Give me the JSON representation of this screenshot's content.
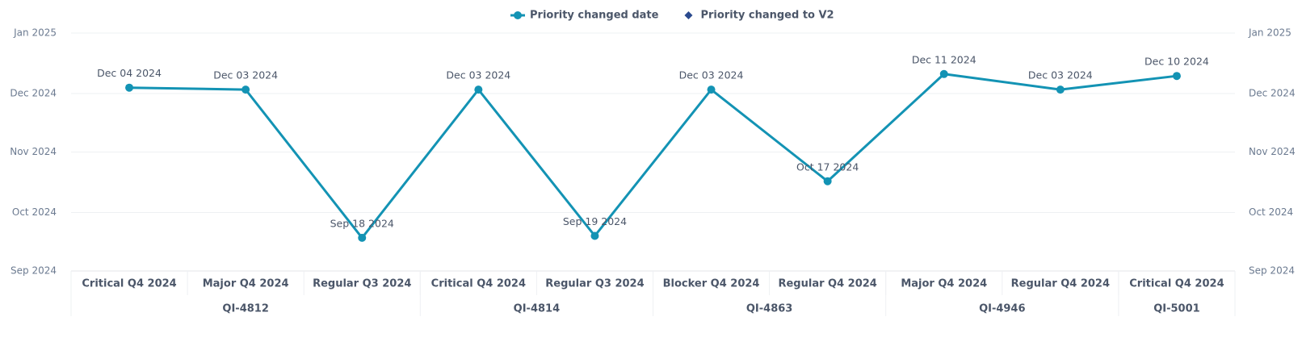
{
  "chart_data": {
    "type": "line",
    "categories": [
      "Critical Q4 2024",
      "Major Q4 2024",
      "Regular Q3 2024",
      "Critical Q4 2024",
      "Regular Q3 2024",
      "Blocker Q4 2024",
      "Regular Q4 2024",
      "Major Q4 2024",
      "Regular Q4 2024",
      "Critical Q4 2024"
    ],
    "groups": [
      {
        "name": "QI-4812",
        "count": 3
      },
      {
        "name": "QI-4814",
        "count": 2
      },
      {
        "name": "QI-4863",
        "count": 2
      },
      {
        "name": "QI-4946",
        "count": 2
      },
      {
        "name": "QI-5001",
        "count": 1
      }
    ],
    "series": [
      {
        "name": "Priority changed date",
        "color": "#1393b4",
        "marker": "circle",
        "values": [
          "2024-12-04",
          "2024-12-03",
          "2024-09-18",
          "2024-12-03",
          "2024-09-19",
          "2024-12-03",
          "2024-10-17",
          "2024-12-11",
          "2024-12-03",
          "2024-12-10"
        ],
        "value_labels": [
          "Dec 04 2024",
          "Dec 03 2024",
          "Sep 18 2024",
          "Dec 03 2024",
          "Sep 19 2024",
          "Dec 03 2024",
          "Oct 17 2024",
          "Dec 11 2024",
          "Dec 03 2024",
          "Dec 10 2024"
        ]
      },
      {
        "name": "Priority changed to V2",
        "color": "#2b4a8e",
        "marker": "diamond",
        "values": [
          null,
          null,
          null,
          null,
          null,
          null,
          null,
          null,
          null,
          null
        ]
      }
    ],
    "ylim": [
      "2024-09-01",
      "2025-01-01"
    ],
    "yticks": [
      {
        "value": "2024-09-01",
        "label": "Sep 2024"
      },
      {
        "value": "2024-10-01",
        "label": "Oct 2024"
      },
      {
        "value": "2024-11-01",
        "label": "Nov 2024"
      },
      {
        "value": "2024-12-01",
        "label": "Dec 2024"
      },
      {
        "value": "2025-01-01",
        "label": "Jan 2025"
      }
    ],
    "y2lim": [
      "2024-09-01",
      "2025-01-01"
    ],
    "y2ticks": [
      {
        "value": "2024-09-01",
        "label": "Sep 2024"
      },
      {
        "value": "2024-10-01",
        "label": "Oct 2024"
      },
      {
        "value": "2024-11-01",
        "label": "Nov 2024"
      },
      {
        "value": "2024-12-01",
        "label": "Dec 2024"
      },
      {
        "value": "2025-01-01",
        "label": "Jan 2025"
      }
    ],
    "grid": true,
    "legend": "top"
  }
}
